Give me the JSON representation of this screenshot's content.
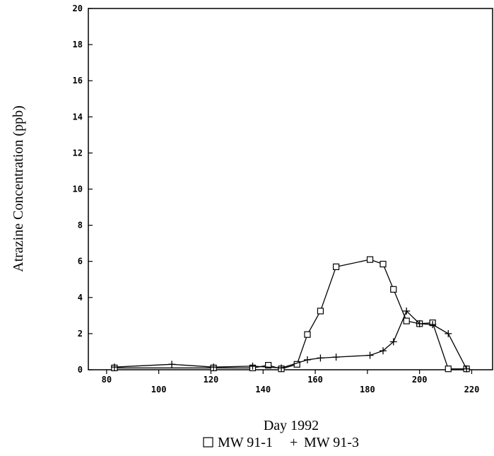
{
  "chart_data": {
    "type": "line",
    "title": "",
    "xlabel": "Day 1992",
    "ylabel": "Atrazine Concentration (ppb)",
    "xlim": [
      73,
      228
    ],
    "ylim": [
      0,
      20
    ],
    "xticks": [
      80,
      100,
      120,
      140,
      160,
      180,
      200,
      220
    ],
    "yticks": [
      0,
      2,
      4,
      6,
      8,
      10,
      12,
      14,
      16,
      18,
      20
    ],
    "grid": false,
    "legend_position": "bottom-center",
    "series": [
      {
        "name": "MW 91-1",
        "marker": "square",
        "points": [
          {
            "x": 83,
            "y": 0.1
          },
          {
            "x": 121,
            "y": 0.1
          },
          {
            "x": 136,
            "y": 0.1
          },
          {
            "x": 142,
            "y": 0.25
          },
          {
            "x": 147,
            "y": 0.05
          },
          {
            "x": 153,
            "y": 0.3
          },
          {
            "x": 157,
            "y": 1.95
          },
          {
            "x": 162,
            "y": 3.25
          },
          {
            "x": 168,
            "y": 5.7
          },
          {
            "x": 181,
            "y": 6.1
          },
          {
            "x": 186,
            "y": 5.85
          },
          {
            "x": 190,
            "y": 4.45
          },
          {
            "x": 195,
            "y": 2.7
          },
          {
            "x": 200,
            "y": 2.55
          },
          {
            "x": 205,
            "y": 2.6
          },
          {
            "x": 211,
            "y": 0.05
          },
          {
            "x": 218,
            "y": 0.05
          }
        ]
      },
      {
        "name": "MW 91-3",
        "marker": "plus",
        "points": [
          {
            "x": 83,
            "y": 0.15
          },
          {
            "x": 105,
            "y": 0.3
          },
          {
            "x": 121,
            "y": 0.15
          },
          {
            "x": 136,
            "y": 0.2
          },
          {
            "x": 147,
            "y": 0.1
          },
          {
            "x": 157,
            "y": 0.55
          },
          {
            "x": 162,
            "y": 0.65
          },
          {
            "x": 168,
            "y": 0.7
          },
          {
            "x": 181,
            "y": 0.8
          },
          {
            "x": 186,
            "y": 1.05
          },
          {
            "x": 190,
            "y": 1.55
          },
          {
            "x": 195,
            "y": 3.25
          },
          {
            "x": 200,
            "y": 2.55
          },
          {
            "x": 205,
            "y": 2.5
          },
          {
            "x": 211,
            "y": 2.0
          },
          {
            "x": 218,
            "y": 0.05
          }
        ]
      }
    ]
  }
}
